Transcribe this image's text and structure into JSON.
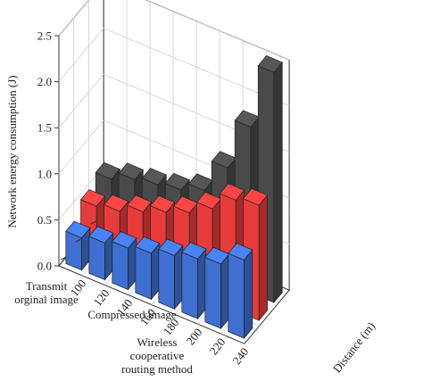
{
  "chart_data": {
    "type": "bar3d",
    "title": "",
    "ylabel": "Network energy consumption (J)",
    "xlabel": "Distance (m)",
    "x": [
      100,
      120,
      140,
      160,
      180,
      200,
      220,
      240
    ],
    "x_tick_labels": [
      "100",
      "120",
      "140",
      "160",
      "180",
      "200",
      "220",
      "240"
    ],
    "y_ticks": [
      0.0,
      0.5,
      1.0,
      1.5,
      2.0,
      2.5
    ],
    "y_tick_labels": [
      "0.0",
      "0.5",
      "1.0",
      "1.5",
      "2.0",
      "2.5"
    ],
    "ylim": [
      0,
      2.5
    ],
    "grid": true,
    "series": [
      {
        "label_lines": [
          "Wireless",
          "cooperative",
          "routing method"
        ],
        "color": "#3f6fd1",
        "values": [
          0.35,
          0.4,
          0.45,
          0.5,
          0.58,
          0.65,
          0.7,
          0.85
        ]
      },
      {
        "label_lines": [
          "Compressed image"
        ],
        "color": "#e83b3b",
        "values": [
          0.5,
          0.55,
          0.65,
          0.75,
          0.85,
          1.0,
          1.2,
          1.25
        ]
      },
      {
        "label_lines": [
          "Transmit",
          "orginal image"
        ],
        "color": "#4a4a4a",
        "values": [
          0.6,
          0.7,
          0.75,
          0.8,
          0.9,
          1.25,
          1.8,
          2.5
        ]
      }
    ]
  }
}
